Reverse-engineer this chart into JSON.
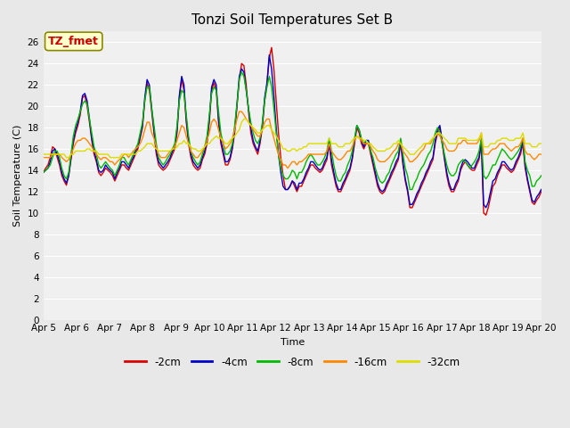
{
  "title": "Tonzi Soil Temperatures Set B",
  "xlabel": "Time",
  "ylabel": "Soil Temperature (C)",
  "ylim": [
    0,
    27
  ],
  "yticks": [
    0,
    2,
    4,
    6,
    8,
    10,
    12,
    14,
    16,
    18,
    20,
    22,
    24,
    26
  ],
  "xtick_labels": [
    "Apr 5",
    "Apr 6",
    "Apr 7",
    "Apr 8",
    "Apr 9",
    "Apr 10",
    "Apr 11",
    "Apr 12",
    "Apr 13",
    "Apr 14",
    "Apr 15",
    "Apr 16",
    "Apr 17",
    "Apr 18",
    "Apr 19",
    "Apr 20"
  ],
  "annotation_text": "TZ_fmet",
  "annotation_color": "#cc0000",
  "annotation_bg": "#ffffcc",
  "annotation_border": "#888800",
  "colors": {
    "-2cm": "#dd0000",
    "-4cm": "#0000cc",
    "-8cm": "#00bb00",
    "-16cm": "#ff8800",
    "-32cm": "#dddd00"
  },
  "series": {
    "-2cm": [
      13.8,
      14.2,
      14.5,
      15.2,
      16.2,
      16.0,
      15.2,
      14.5,
      13.5,
      13.0,
      12.6,
      13.5,
      15.0,
      16.5,
      17.5,
      18.2,
      19.2,
      20.8,
      21.0,
      20.0,
      18.5,
      16.8,
      15.5,
      14.8,
      13.8,
      13.5,
      13.8,
      14.2,
      14.0,
      13.8,
      13.5,
      13.0,
      13.5,
      14.0,
      14.5,
      14.5,
      14.2,
      14.0,
      14.5,
      15.0,
      15.5,
      16.0,
      17.0,
      18.0,
      20.5,
      22.2,
      21.5,
      19.5,
      17.5,
      15.5,
      14.5,
      14.2,
      14.0,
      14.2,
      14.5,
      15.0,
      15.5,
      16.0,
      17.5,
      20.8,
      22.5,
      21.5,
      18.5,
      16.5,
      15.2,
      14.5,
      14.2,
      14.0,
      14.2,
      15.0,
      15.5,
      16.5,
      18.5,
      21.5,
      22.2,
      21.5,
      18.5,
      16.5,
      15.5,
      14.5,
      14.5,
      15.0,
      16.0,
      17.5,
      20.0,
      22.5,
      24.0,
      23.8,
      22.0,
      19.5,
      17.5,
      16.5,
      16.0,
      15.5,
      16.5,
      18.0,
      20.5,
      22.0,
      24.5,
      25.5,
      23.5,
      20.5,
      17.5,
      15.2,
      13.5,
      12.2,
      12.2,
      12.5,
      13.0,
      12.5,
      12.0,
      12.5,
      12.5,
      13.0,
      13.5,
      14.0,
      14.5,
      14.5,
      14.2,
      14.0,
      13.8,
      14.0,
      14.5,
      15.0,
      16.5,
      14.5,
      13.5,
      12.5,
      12.0,
      12.0,
      12.5,
      13.0,
      13.5,
      14.0,
      15.0,
      16.5,
      18.0,
      17.5,
      16.5,
      16.0,
      16.5,
      16.5,
      15.5,
      14.5,
      13.5,
      12.5,
      12.0,
      11.8,
      12.0,
      12.5,
      13.0,
      13.5,
      14.0,
      14.5,
      15.0,
      16.5,
      14.5,
      13.0,
      12.0,
      10.5,
      10.5,
      11.0,
      11.5,
      12.0,
      12.5,
      13.0,
      13.5,
      14.0,
      14.5,
      15.0,
      16.5,
      17.5,
      18.0,
      16.5,
      15.0,
      13.5,
      12.5,
      12.0,
      12.0,
      12.5,
      13.0,
      14.0,
      14.5,
      14.8,
      14.5,
      14.2,
      14.0,
      14.0,
      14.5,
      15.0,
      16.5,
      10.0,
      9.8,
      10.5,
      11.5,
      12.5,
      12.8,
      13.5,
      14.0,
      14.5,
      14.5,
      14.2,
      14.0,
      13.8,
      14.0,
      14.5,
      15.0,
      15.5,
      16.5,
      14.2,
      13.0,
      12.0,
      11.0,
      10.8,
      11.2,
      11.5,
      12.0
    ],
    "-4cm": [
      13.8,
      14.0,
      14.2,
      14.8,
      15.8,
      16.0,
      15.5,
      14.8,
      13.8,
      13.2,
      12.8,
      13.5,
      15.2,
      16.8,
      17.8,
      18.5,
      19.5,
      21.0,
      21.2,
      20.5,
      18.8,
      17.0,
      15.8,
      15.0,
      14.0,
      13.8,
      14.0,
      14.5,
      14.2,
      14.0,
      13.8,
      13.2,
      13.8,
      14.2,
      14.8,
      14.8,
      14.5,
      14.2,
      14.8,
      15.2,
      15.8,
      16.2,
      17.2,
      18.2,
      20.8,
      22.5,
      22.0,
      19.8,
      17.8,
      15.8,
      14.8,
      14.5,
      14.2,
      14.5,
      14.8,
      15.2,
      15.8,
      16.2,
      17.8,
      21.0,
      22.8,
      22.0,
      18.8,
      16.8,
      15.5,
      14.8,
      14.5,
      14.2,
      14.5,
      15.2,
      15.8,
      16.8,
      18.8,
      21.8,
      22.5,
      22.0,
      18.8,
      16.8,
      15.8,
      14.8,
      14.8,
      15.2,
      16.2,
      17.8,
      20.2,
      22.8,
      23.5,
      23.2,
      21.5,
      19.8,
      18.0,
      16.8,
      16.2,
      15.8,
      16.8,
      18.2,
      20.8,
      22.2,
      24.8,
      23.5,
      21.0,
      18.0,
      15.5,
      13.8,
      12.5,
      12.2,
      12.2,
      12.5,
      13.0,
      12.8,
      12.2,
      12.8,
      12.8,
      13.2,
      13.8,
      14.2,
      14.8,
      14.8,
      14.5,
      14.2,
      14.0,
      14.2,
      14.8,
      15.2,
      16.8,
      15.0,
      13.8,
      12.8,
      12.2,
      12.2,
      12.8,
      13.2,
      13.8,
      14.2,
      15.2,
      16.8,
      18.2,
      17.8,
      16.8,
      16.2,
      16.8,
      16.8,
      15.8,
      14.8,
      13.8,
      12.8,
      12.2,
      12.0,
      12.2,
      12.8,
      13.2,
      13.8,
      14.2,
      14.8,
      15.2,
      16.8,
      14.8,
      13.2,
      12.2,
      10.8,
      10.8,
      11.2,
      11.8,
      12.2,
      12.8,
      13.2,
      13.8,
      14.2,
      14.8,
      15.2,
      16.8,
      17.8,
      18.2,
      16.8,
      15.2,
      13.8,
      12.8,
      12.2,
      12.2,
      12.8,
      13.2,
      14.2,
      14.8,
      15.0,
      14.8,
      14.5,
      14.2,
      14.2,
      14.8,
      15.2,
      16.8,
      10.8,
      10.5,
      11.0,
      12.0,
      13.0,
      13.2,
      13.8,
      14.2,
      14.8,
      14.8,
      14.5,
      14.2,
      14.0,
      14.2,
      14.8,
      15.2,
      15.8,
      16.8,
      14.5,
      13.2,
      12.2,
      11.2,
      11.0,
      11.5,
      11.8,
      12.2
    ],
    "-8cm": [
      13.8,
      14.0,
      14.2,
      14.5,
      15.2,
      15.8,
      15.8,
      15.2,
      14.2,
      13.5,
      13.2,
      13.8,
      15.5,
      17.2,
      18.2,
      18.8,
      19.5,
      20.2,
      20.5,
      20.2,
      18.8,
      17.5,
      16.2,
      15.5,
      14.5,
      14.2,
      14.5,
      14.8,
      14.5,
      14.2,
      14.0,
      13.5,
      14.0,
      14.5,
      15.2,
      15.2,
      14.8,
      14.5,
      15.0,
      15.5,
      16.0,
      16.5,
      17.5,
      18.5,
      20.5,
      21.8,
      21.8,
      19.8,
      18.2,
      16.5,
      15.2,
      14.8,
      14.5,
      14.8,
      15.2,
      15.5,
      16.0,
      16.5,
      18.2,
      20.5,
      21.5,
      21.2,
      19.2,
      17.2,
      15.8,
      15.2,
      14.8,
      14.5,
      14.8,
      15.5,
      16.2,
      17.2,
      19.2,
      21.2,
      21.8,
      21.5,
      19.5,
      17.5,
      16.5,
      15.5,
      15.5,
      15.8,
      16.5,
      18.2,
      20.2,
      22.5,
      23.2,
      22.8,
      21.5,
      19.8,
      18.5,
      17.5,
      16.8,
      16.5,
      17.0,
      18.5,
      20.5,
      21.8,
      22.8,
      21.8,
      19.8,
      17.5,
      15.5,
      14.2,
      13.5,
      13.2,
      13.2,
      13.5,
      14.0,
      13.8,
      13.2,
      13.8,
      13.8,
      14.2,
      14.8,
      15.2,
      15.5,
      15.2,
      14.8,
      14.5,
      14.5,
      14.8,
      15.2,
      15.8,
      17.0,
      15.8,
      14.5,
      13.5,
      13.0,
      13.0,
      13.5,
      13.8,
      14.5,
      15.0,
      15.8,
      17.0,
      18.2,
      17.8,
      17.0,
      16.5,
      16.8,
      16.5,
      15.8,
      15.2,
      14.2,
      13.5,
      13.0,
      12.8,
      13.0,
      13.5,
      13.8,
      14.5,
      15.0,
      15.5,
      15.8,
      17.0,
      15.5,
      14.2,
      13.5,
      12.2,
      12.2,
      12.8,
      13.2,
      13.8,
      14.2,
      14.5,
      15.0,
      15.5,
      15.8,
      16.5,
      17.5,
      18.0,
      17.5,
      16.5,
      15.5,
      14.5,
      13.8,
      13.5,
      13.5,
      13.8,
      14.5,
      14.8,
      15.0,
      14.8,
      14.5,
      14.2,
      14.5,
      14.8,
      15.2,
      15.8,
      17.0,
      13.5,
      13.2,
      13.5,
      14.0,
      14.5,
      14.5,
      15.0,
      15.5,
      16.0,
      15.8,
      15.5,
      15.2,
      15.0,
      15.2,
      15.5,
      15.8,
      16.2,
      17.0,
      14.8,
      14.0,
      13.5,
      12.5,
      12.5,
      13.0,
      13.2,
      13.5
    ],
    "-16cm": [
      15.2,
      15.2,
      15.2,
      15.2,
      15.5,
      15.5,
      15.5,
      15.5,
      15.2,
      15.0,
      14.8,
      15.0,
      15.5,
      16.0,
      16.5,
      16.8,
      16.8,
      17.0,
      17.0,
      16.8,
      16.5,
      16.2,
      15.8,
      15.5,
      15.2,
      15.0,
      15.2,
      15.2,
      15.0,
      14.8,
      14.8,
      14.5,
      14.8,
      15.0,
      15.2,
      15.5,
      15.5,
      15.2,
      15.5,
      15.8,
      16.0,
      16.2,
      16.5,
      17.0,
      17.8,
      18.5,
      18.5,
      17.5,
      17.0,
      16.2,
      15.5,
      15.2,
      15.2,
      15.2,
      15.5,
      15.8,
      16.0,
      16.2,
      16.8,
      17.5,
      18.2,
      18.0,
      17.2,
      16.5,
      15.8,
      15.5,
      15.2,
      15.2,
      15.5,
      15.8,
      16.2,
      16.8,
      17.5,
      18.5,
      18.8,
      18.5,
      17.8,
      17.0,
      16.5,
      16.0,
      16.2,
      16.5,
      17.0,
      17.8,
      18.8,
      19.5,
      19.5,
      19.2,
      18.8,
      18.5,
      18.2,
      17.8,
      17.5,
      17.2,
      17.2,
      17.8,
      18.5,
      18.8,
      18.8,
      17.8,
      17.0,
      16.2,
      15.5,
      15.0,
      14.5,
      14.5,
      14.2,
      14.5,
      14.8,
      14.8,
      14.5,
      14.8,
      14.8,
      15.0,
      15.2,
      15.5,
      15.5,
      15.5,
      15.5,
      15.5,
      15.5,
      15.5,
      15.5,
      15.8,
      16.5,
      15.8,
      15.5,
      15.2,
      15.0,
      15.0,
      15.2,
      15.5,
      15.8,
      15.8,
      16.2,
      16.8,
      17.2,
      17.0,
      16.8,
      16.5,
      16.5,
      16.5,
      16.2,
      15.8,
      15.5,
      15.0,
      14.8,
      14.8,
      14.8,
      15.0,
      15.2,
      15.5,
      15.8,
      16.0,
      16.5,
      16.5,
      15.8,
      15.5,
      15.2,
      14.8,
      14.8,
      15.0,
      15.2,
      15.5,
      15.8,
      16.0,
      16.5,
      16.5,
      16.5,
      17.0,
      17.2,
      17.5,
      17.2,
      16.8,
      16.5,
      16.0,
      15.8,
      15.8,
      15.8,
      16.0,
      16.5,
      16.5,
      16.8,
      16.8,
      16.5,
      16.5,
      16.5,
      16.5,
      16.5,
      16.8,
      17.5,
      15.5,
      15.5,
      15.5,
      15.8,
      16.0,
      16.0,
      16.2,
      16.5,
      16.5,
      16.5,
      16.2,
      16.0,
      15.8,
      16.0,
      16.2,
      16.2,
      16.5,
      17.0,
      15.8,
      15.5,
      15.5,
      15.2,
      15.0,
      15.2,
      15.5,
      15.5
    ],
    "-32cm": [
      15.5,
      15.5,
      15.5,
      15.5,
      15.5,
      15.5,
      15.5,
      15.5,
      15.5,
      15.5,
      15.2,
      15.2,
      15.5,
      15.5,
      15.8,
      15.8,
      15.8,
      15.8,
      15.8,
      16.0,
      16.0,
      15.8,
      15.8,
      15.8,
      15.5,
      15.5,
      15.5,
      15.5,
      15.5,
      15.2,
      15.2,
      15.2,
      15.2,
      15.2,
      15.5,
      15.5,
      15.5,
      15.5,
      15.5,
      15.5,
      15.5,
      15.8,
      15.8,
      16.0,
      16.2,
      16.5,
      16.5,
      16.5,
      16.2,
      16.0,
      15.8,
      15.8,
      15.8,
      15.8,
      15.8,
      15.8,
      16.0,
      16.0,
      16.2,
      16.5,
      16.5,
      16.8,
      16.5,
      16.5,
      16.2,
      16.0,
      16.0,
      15.8,
      15.8,
      16.0,
      16.2,
      16.5,
      16.5,
      16.8,
      17.0,
      17.2,
      17.0,
      17.0,
      16.8,
      16.5,
      16.5,
      16.8,
      17.0,
      17.2,
      17.5,
      17.8,
      18.5,
      18.8,
      18.8,
      18.5,
      18.2,
      18.0,
      17.8,
      17.5,
      17.5,
      17.8,
      18.0,
      18.2,
      18.2,
      17.8,
      17.5,
      17.2,
      16.8,
      16.5,
      16.0,
      16.0,
      15.8,
      15.8,
      16.0,
      16.0,
      15.8,
      16.0,
      16.0,
      16.2,
      16.2,
      16.5,
      16.5,
      16.5,
      16.5,
      16.5,
      16.5,
      16.5,
      16.5,
      16.5,
      17.0,
      16.5,
      16.5,
      16.5,
      16.2,
      16.2,
      16.2,
      16.5,
      16.5,
      16.5,
      16.8,
      17.0,
      17.2,
      17.0,
      17.0,
      16.8,
      16.8,
      16.5,
      16.5,
      16.2,
      16.0,
      15.8,
      15.8,
      15.8,
      15.8,
      16.0,
      16.0,
      16.2,
      16.5,
      16.5,
      16.8,
      16.5,
      16.2,
      16.0,
      15.8,
      15.5,
      15.5,
      15.5,
      15.8,
      16.0,
      16.2,
      16.5,
      16.5,
      16.5,
      16.8,
      17.0,
      17.2,
      17.5,
      17.5,
      17.2,
      17.0,
      16.8,
      16.5,
      16.5,
      16.5,
      16.5,
      17.0,
      17.0,
      17.0,
      17.0,
      16.8,
      16.8,
      16.8,
      16.8,
      16.8,
      17.0,
      17.5,
      16.2,
      16.2,
      16.2,
      16.5,
      16.5,
      16.5,
      16.8,
      16.8,
      17.0,
      17.0,
      17.0,
      16.8,
      16.8,
      16.8,
      17.0,
      17.0,
      17.0,
      17.5,
      16.5,
      16.5,
      16.5,
      16.2,
      16.2,
      16.2,
      16.5,
      16.5
    ]
  },
  "bg_color": "#e8e8e8",
  "plot_bg_color": "#f0f0f0",
  "grid_color": "#ffffff",
  "title_fontsize": 11,
  "axis_label_fontsize": 8,
  "tick_fontsize": 7.5,
  "legend_fontsize": 8.5,
  "linewidth": 1.0
}
